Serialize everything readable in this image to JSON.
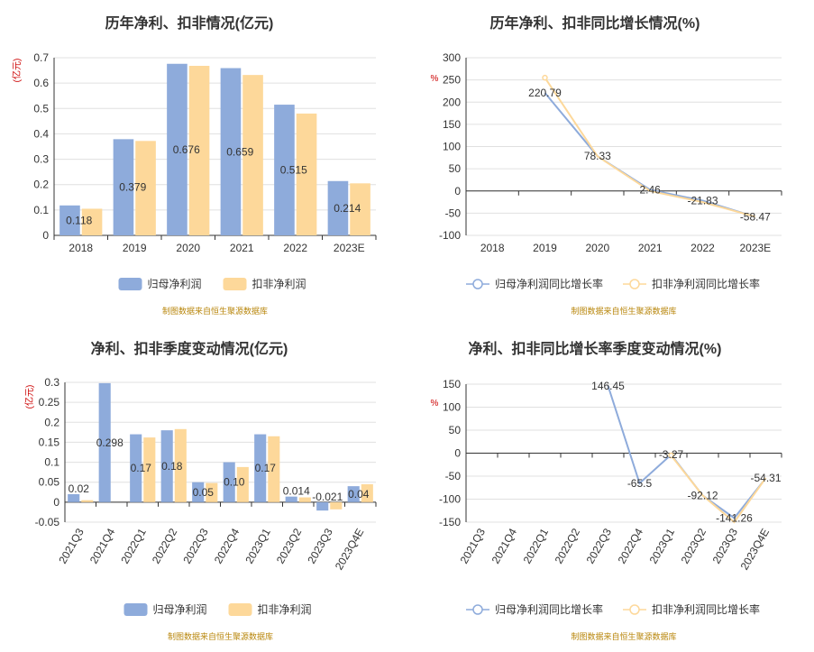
{
  "colors": {
    "series1": "#8eabdb",
    "series2": "#fdd89a",
    "grid": "#e0e0e0",
    "axis": "#333333",
    "source": "#b8860b",
    "unit": "#cc0000"
  },
  "source_note": "制图数据来自恒生聚源数据库",
  "chart_data": [
    {
      "id": "annual-profit",
      "type": "bar",
      "title": "历年净利、扣非情况(亿元)",
      "ylabel": "(亿元)",
      "ylim": [
        0,
        0.7
      ],
      "yticks": [
        0,
        0.1,
        0.2,
        0.3,
        0.4,
        0.5,
        0.6,
        0.7
      ],
      "grid": true,
      "categories": [
        "2018",
        "2019",
        "2020",
        "2021",
        "2022",
        "2023E"
      ],
      "series": [
        {
          "name": "归母净利润",
          "values": [
            0.118,
            0.379,
            0.676,
            0.659,
            0.515,
            0.214
          ],
          "labels": [
            "0.118",
            "0.379",
            "0.676",
            "0.659",
            "0.515",
            "0.214"
          ]
        },
        {
          "name": "扣非净利润",
          "values": [
            0.105,
            0.372,
            0.668,
            0.632,
            0.48,
            0.205
          ]
        }
      ],
      "legend": "bottom-center"
    },
    {
      "id": "annual-growth",
      "type": "line",
      "title": "历年净利、扣非同比增长情况(%)",
      "ylabel": "%",
      "ylim": [
        -100,
        300
      ],
      "yticks": [
        -100,
        -50,
        0,
        50,
        100,
        150,
        200,
        250,
        300
      ],
      "grid": true,
      "categories": [
        "2018",
        "2019",
        "2020",
        "2021",
        "2022",
        "2023E"
      ],
      "series": [
        {
          "name": "归母净利润同比增长率",
          "values": [
            null,
            220.79,
            78.33,
            2.46,
            -21.83,
            -58.47
          ],
          "labels": [
            "",
            "220.79",
            "78.33",
            "2.46",
            "-21.83",
            "-58.47"
          ]
        },
        {
          "name": "扣非净利润同比增长率",
          "values": [
            null,
            255,
            78,
            0,
            -25,
            -58
          ]
        }
      ],
      "legend": "bottom-center"
    },
    {
      "id": "quarterly-profit",
      "type": "bar",
      "title": "净利、扣非季度变动情况(亿元)",
      "ylabel": "(亿元)",
      "ylim": [
        -0.05,
        0.3
      ],
      "yticks": [
        -0.05,
        0,
        0.05,
        0.1,
        0.15,
        0.2,
        0.25,
        0.3
      ],
      "grid": true,
      "categories": [
        "2021Q3",
        "2021Q4",
        "2022Q1",
        "2022Q2",
        "2022Q3",
        "2022Q4",
        "2023Q1",
        "2023Q2",
        "2023Q3",
        "2023Q4E"
      ],
      "series": [
        {
          "name": "归母净利润",
          "values": [
            0.02,
            0.298,
            0.17,
            0.18,
            0.05,
            0.1,
            0.17,
            0.014,
            -0.021,
            0.04
          ],
          "labels": [
            "0.02",
            "0.298",
            "0.17",
            "0.18",
            "0.05",
            "0.10",
            "0.17",
            "0.014",
            "-0.021",
            "0.04"
          ]
        },
        {
          "name": "扣非净利润",
          "values": [
            0.005,
            0,
            0.162,
            0.183,
            0.048,
            0.088,
            0.165,
            0.012,
            -0.018,
            0.045
          ]
        }
      ],
      "legend": "bottom-center"
    },
    {
      "id": "quarterly-growth",
      "type": "line",
      "title": "净利、扣非同比增长率季度变动情况(%)",
      "ylabel": "%",
      "ylim": [
        -150,
        150
      ],
      "yticks": [
        -150,
        -100,
        -50,
        0,
        50,
        100,
        150
      ],
      "grid": true,
      "categories": [
        "2021Q3",
        "2021Q4",
        "2022Q1",
        "2022Q2",
        "2022Q3",
        "2022Q4",
        "2023Q1",
        "2023Q2",
        "2023Q3",
        "2023Q4E"
      ],
      "series": [
        {
          "name": "归母净利润同比增长率",
          "values": [
            null,
            null,
            null,
            null,
            146.45,
            -65.5,
            -3.27,
            -92.12,
            -141.26,
            -54.31
          ],
          "labels": [
            "",
            "",
            "",
            "",
            "146.45",
            "-65.5",
            "-3.27",
            "-92.12",
            "-141.26",
            "-54.31"
          ]
        },
        {
          "name": "扣非净利润同比增长率",
          "values": [
            null,
            null,
            null,
            null,
            null,
            null,
            -5,
            -92,
            -150,
            -54
          ]
        }
      ],
      "legend": "bottom-center"
    }
  ]
}
